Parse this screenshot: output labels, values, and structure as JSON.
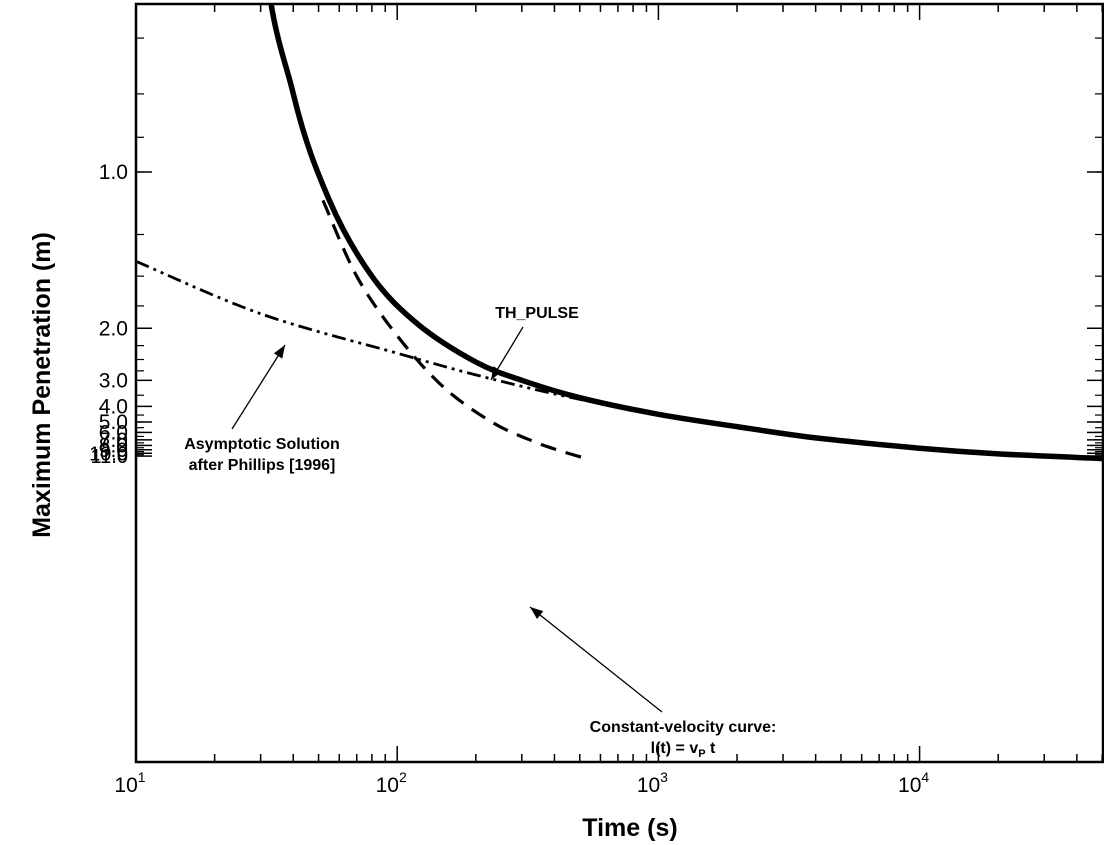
{
  "chart_data": {
    "type": "line",
    "title": "",
    "xlabel": "Time (s)",
    "ylabel": "Maximum Penetration (m)",
    "x_scale": "log",
    "y_scale": "reciprocal",
    "xlim": [
      10,
      50000
    ],
    "ylim": [
      0.28,
      11.8
    ],
    "grid": false,
    "legend": "none",
    "x_ticks": [
      {
        "base": "10",
        "exp": "1",
        "value": 10
      },
      {
        "base": "10",
        "exp": "2",
        "value": 100
      },
      {
        "base": "10",
        "exp": "3",
        "value": 1000
      },
      {
        "base": "10",
        "exp": "4",
        "value": 10000
      }
    ],
    "y_tick_labels": [
      {
        "label": "1.0",
        "value": 1.0
      },
      {
        "label": "2.0",
        "value": 2.0
      },
      {
        "label": "3.0",
        "value": 3.0
      },
      {
        "label": "4.0",
        "value": 4.0
      },
      {
        "label": "5.0",
        "value": 5.0
      },
      {
        "label": "6.0",
        "value": 6.0
      },
      {
        "label": "7.0",
        "value": 7.0
      },
      {
        "label": "8.0",
        "value": 8.0
      },
      {
        "label": "9.0",
        "value": 9.0
      },
      {
        "label": "10.0",
        "value": 10.0
      },
      {
        "label": "11.0",
        "value": 11.0
      }
    ],
    "series": [
      {
        "name": "TH_PULSE",
        "style": "solid-thick",
        "color": "#000000",
        "points": [
          [
            22.5,
            0.28
          ],
          [
            30,
            0.55
          ],
          [
            40,
            0.8
          ],
          [
            55,
            1.1
          ],
          [
            80,
            1.5
          ],
          [
            120,
            1.95
          ],
          [
            200,
            2.55
          ],
          [
            300,
            3.0
          ],
          [
            500,
            3.6
          ],
          [
            1000,
            4.45
          ],
          [
            2000,
            5.4
          ],
          [
            4000,
            6.7
          ],
          [
            10000,
            8.6
          ],
          [
            20000,
            10.2
          ],
          [
            50000,
            12.0
          ]
        ]
      },
      {
        "name": "Asymptotic Solution after Phillips [1996]",
        "style": "dash-dot-dot",
        "color": "#000000",
        "points": [
          [
            10,
            1.4
          ],
          [
            30,
            1.83
          ],
          [
            100,
            2.38
          ],
          [
            200,
            2.85
          ],
          [
            400,
            3.45
          ],
          [
            800,
            4.2
          ],
          [
            1000,
            4.4
          ],
          [
            2000,
            5.35
          ]
        ]
      },
      {
        "name": "Constant-velocity curve: l(t) = vP t",
        "style": "dashed",
        "color": "#000000",
        "points": [
          [
            52,
            1.1
          ],
          [
            70,
            1.5
          ],
          [
            100,
            2.1
          ],
          [
            150,
            3.2
          ],
          [
            230,
            5.0
          ],
          [
            330,
            7.2
          ],
          [
            430,
            9.5
          ],
          [
            520,
            11.8
          ]
        ]
      }
    ],
    "annotations": [
      {
        "lines": [
          "TH_PULSE"
        ]
      },
      {
        "lines": [
          "Asymptotic Solution",
          "after Phillips [1996]"
        ]
      },
      {
        "lines": [
          "Constant-velocity curve:",
          "l(t) = v",
          "P",
          " t"
        ]
      }
    ]
  }
}
